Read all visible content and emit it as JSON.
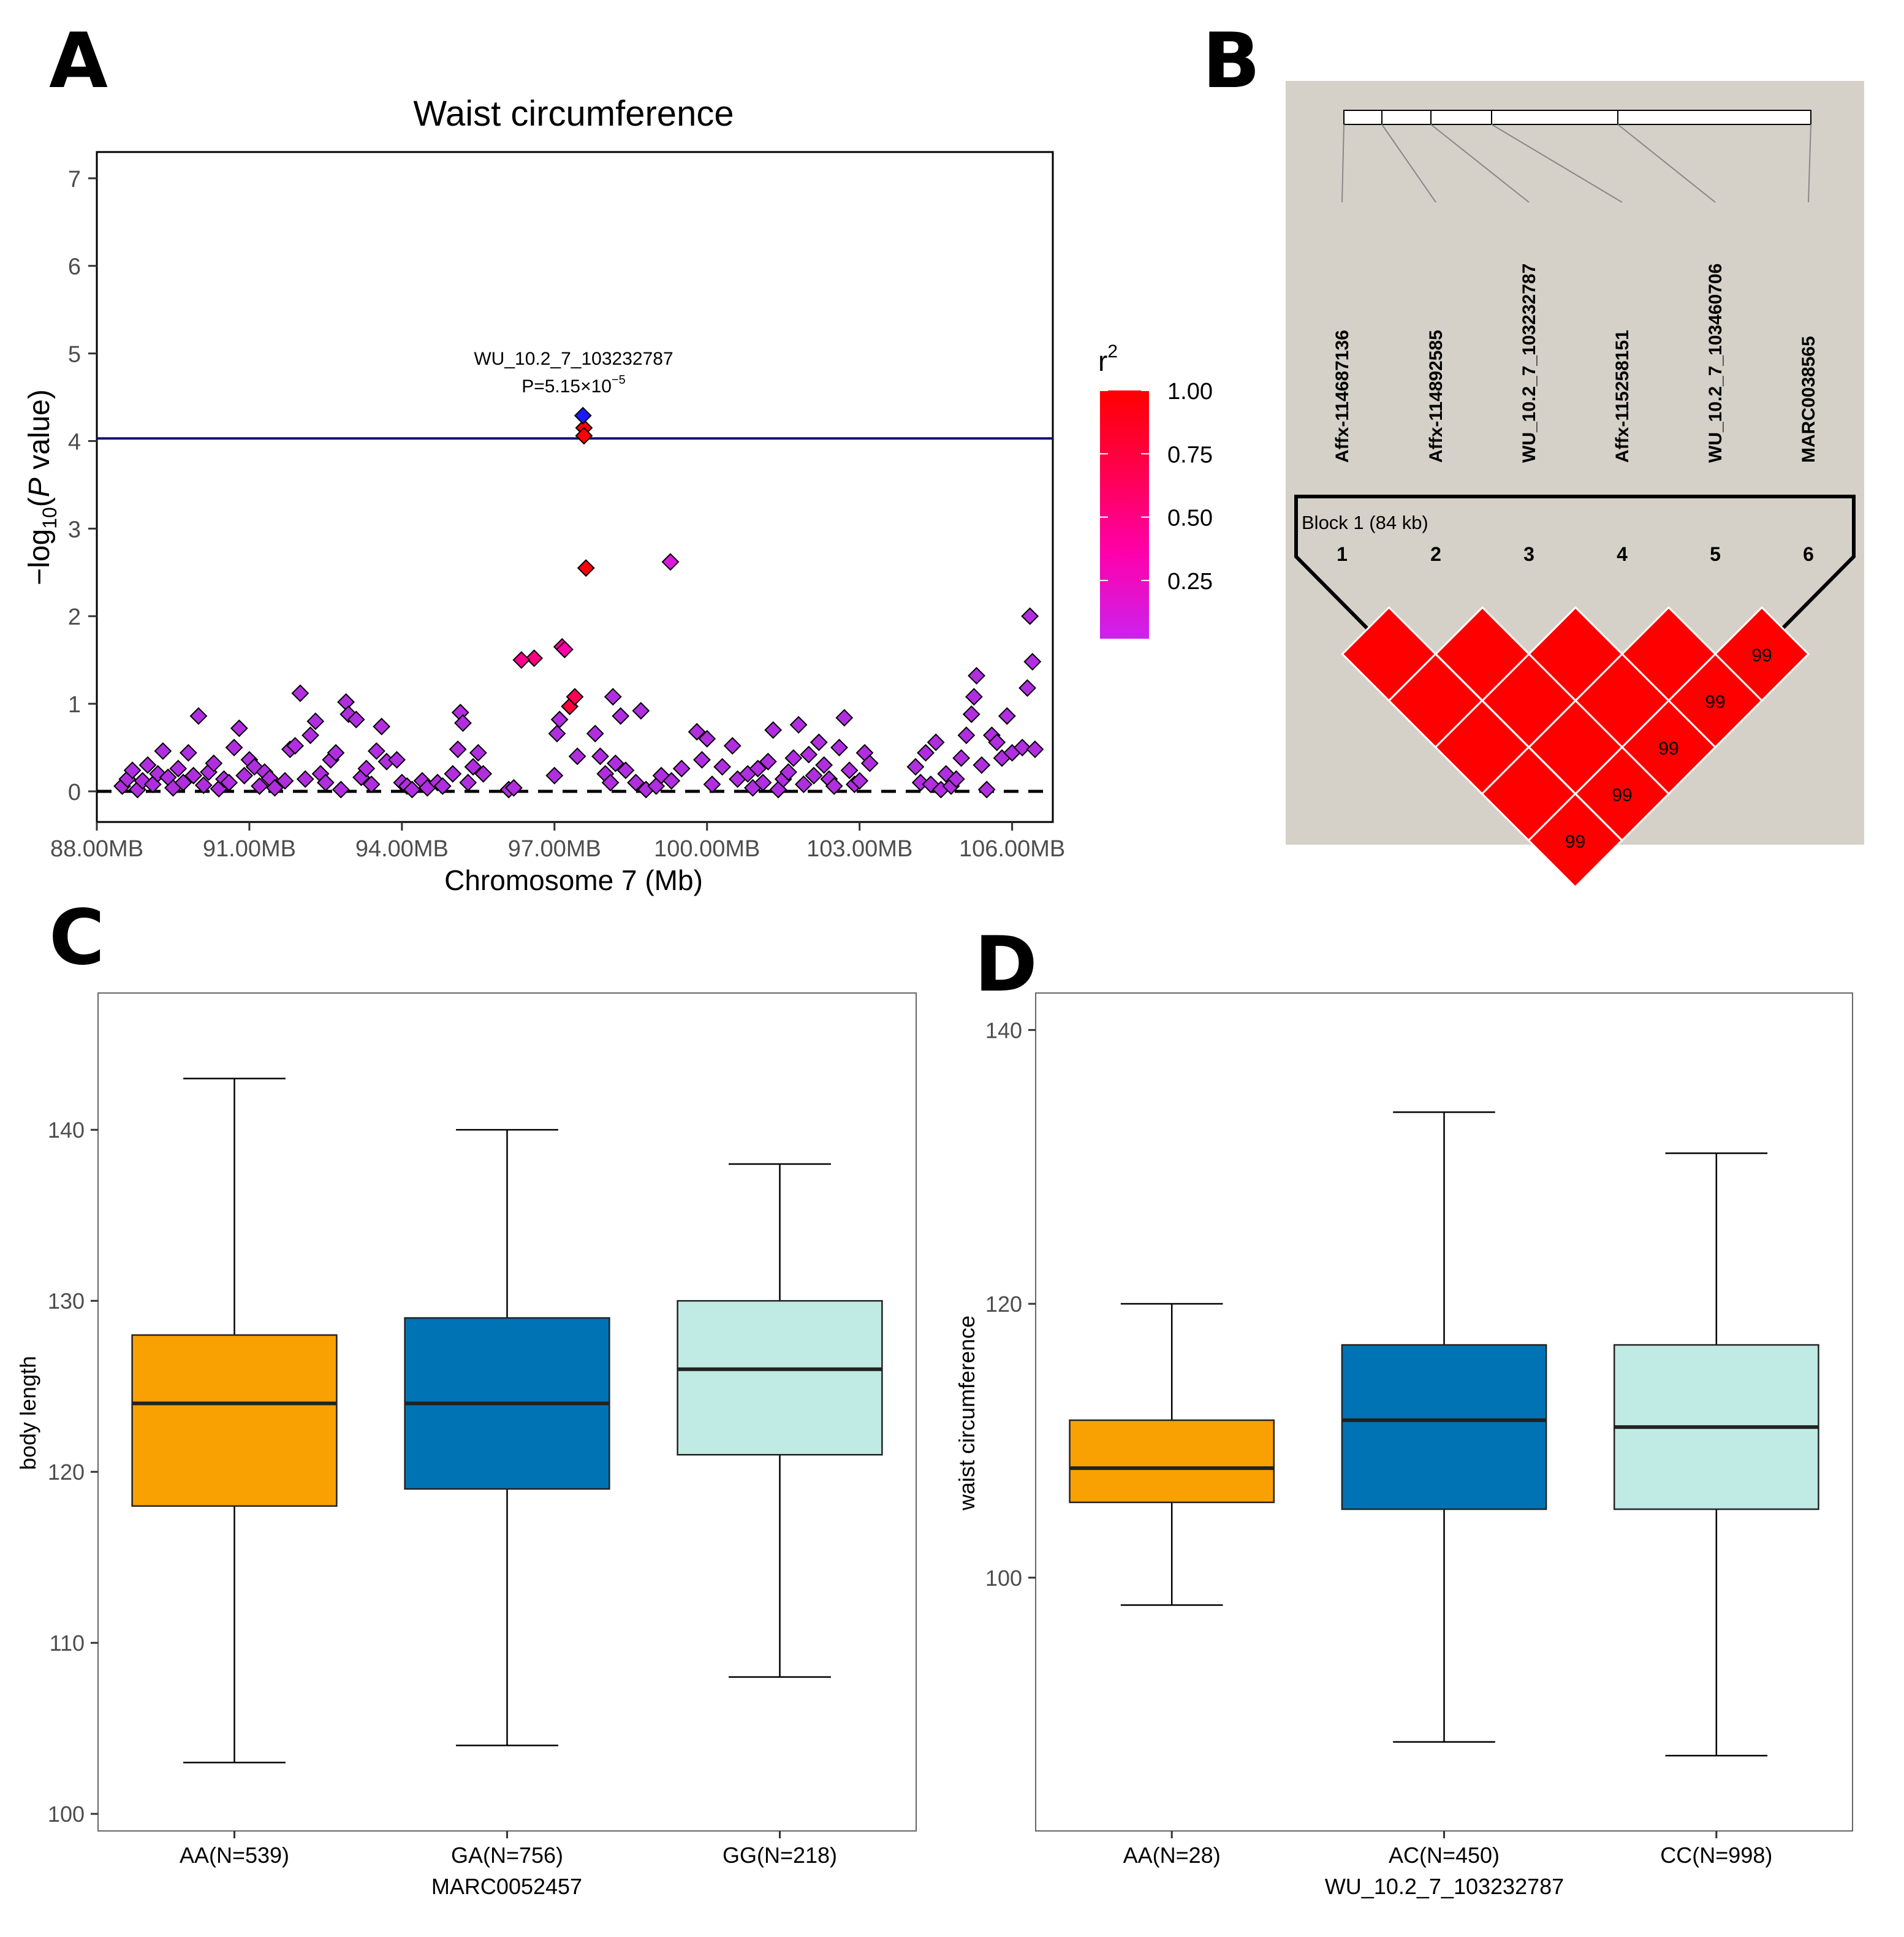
{
  "panel_letters": {
    "a": "A",
    "b": "B",
    "c": "C",
    "d": "D"
  },
  "chart_data": [
    {
      "panel": "A",
      "type": "scatter",
      "title": "Waist circumference",
      "xlabel": "Chromosome 7 (Mb)",
      "ylabel_parts": {
        "pre": "−log",
        "sub": "10",
        "open": "(",
        "italic": "P",
        "rest": " value)"
      },
      "xlim": [
        88.0,
        106.8
      ],
      "ylim": [
        -0.35,
        7.3
      ],
      "x_ticks": [
        88,
        91,
        94,
        97,
        100,
        103,
        106
      ],
      "x_tick_labels": [
        "88.00MB",
        "91.00MB",
        "94.00MB",
        "97.00MB",
        "100.00MB",
        "103.00MB",
        "106.00MB"
      ],
      "y_ticks": [
        0,
        1,
        2,
        3,
        4,
        5,
        6,
        7
      ],
      "y_tick_labels": [
        "0",
        "1",
        "2",
        "3",
        "4",
        "5",
        "6",
        "7"
      ],
      "threshold": 4.03,
      "baseline": 0,
      "top_snp": {
        "name": "WU_10.2_7_103232787",
        "p_prefix": "P=5.15×10",
        "p_exp": "−5",
        "x": 97.56,
        "y": 4.29
      },
      "legend": {
        "title": "r",
        "title_sup": "2",
        "ticks": [
          1.0,
          0.75,
          0.5,
          0.25
        ],
        "tick_labels": [
          "1.00",
          "0.75",
          "0.50",
          "0.25"
        ],
        "colors": [
          "#ff0000",
          "#ff0066",
          "#ff00bb",
          "#cc22ee"
        ]
      },
      "highlight_points": [
        {
          "x": 97.58,
          "y": 4.15,
          "r2": 0.99
        },
        {
          "x": 97.58,
          "y": 4.06,
          "r2": 0.97
        },
        {
          "x": 97.62,
          "y": 2.55,
          "r2": 0.95
        },
        {
          "x": 97.3,
          "y": 0.97,
          "r2": 0.75
        },
        {
          "x": 97.4,
          "y": 1.08,
          "r2": 0.65
        },
        {
          "x": 96.6,
          "y": 1.52,
          "r2": 0.5
        },
        {
          "x": 96.35,
          "y": 1.5,
          "r2": 0.45
        },
        {
          "x": 97.15,
          "y": 1.65,
          "r2": 0.4
        },
        {
          "x": 97.2,
          "y": 1.62,
          "r2": 0.35
        },
        {
          "x": 99.28,
          "y": 2.62,
          "r2": 0.1
        }
      ],
      "points": [
        {
          "x": 88.5,
          "y": 0.06
        },
        {
          "x": 88.6,
          "y": 0.14
        },
        {
          "x": 88.7,
          "y": 0.24
        },
        {
          "x": 88.8,
          "y": 0.02
        },
        {
          "x": 88.9,
          "y": 0.12
        },
        {
          "x": 89.0,
          "y": 0.3
        },
        {
          "x": 89.1,
          "y": 0.08
        },
        {
          "x": 89.2,
          "y": 0.2
        },
        {
          "x": 89.3,
          "y": 0.46
        },
        {
          "x": 89.4,
          "y": 0.16
        },
        {
          "x": 89.5,
          "y": 0.04
        },
        {
          "x": 89.6,
          "y": 0.26
        },
        {
          "x": 89.7,
          "y": 0.1
        },
        {
          "x": 89.8,
          "y": 0.44
        },
        {
          "x": 89.9,
          "y": 0.18
        },
        {
          "x": 90.0,
          "y": 0.86
        },
        {
          "x": 90.1,
          "y": 0.07
        },
        {
          "x": 90.2,
          "y": 0.22
        },
        {
          "x": 90.3,
          "y": 0.32
        },
        {
          "x": 90.4,
          "y": 0.03
        },
        {
          "x": 90.5,
          "y": 0.14
        },
        {
          "x": 90.6,
          "y": 0.1
        },
        {
          "x": 90.7,
          "y": 0.5
        },
        {
          "x": 90.8,
          "y": 0.72
        },
        {
          "x": 90.9,
          "y": 0.18
        },
        {
          "x": 91.0,
          "y": 0.36
        },
        {
          "x": 91.1,
          "y": 0.28
        },
        {
          "x": 91.2,
          "y": 0.06
        },
        {
          "x": 91.3,
          "y": 0.22
        },
        {
          "x": 91.4,
          "y": 0.15
        },
        {
          "x": 91.5,
          "y": 0.04
        },
        {
          "x": 91.7,
          "y": 0.12
        },
        {
          "x": 91.8,
          "y": 0.48
        },
        {
          "x": 91.9,
          "y": 0.52
        },
        {
          "x": 92.0,
          "y": 1.12
        },
        {
          "x": 92.1,
          "y": 0.14
        },
        {
          "x": 92.2,
          "y": 0.64
        },
        {
          "x": 92.3,
          "y": 0.8
        },
        {
          "x": 92.4,
          "y": 0.2
        },
        {
          "x": 92.5,
          "y": 0.1
        },
        {
          "x": 92.6,
          "y": 0.36
        },
        {
          "x": 92.7,
          "y": 0.44
        },
        {
          "x": 92.8,
          "y": 0.02
        },
        {
          "x": 92.9,
          "y": 1.02
        },
        {
          "x": 92.95,
          "y": 0.88
        },
        {
          "x": 93.1,
          "y": 0.82
        },
        {
          "x": 93.2,
          "y": 0.16
        },
        {
          "x": 93.3,
          "y": 0.26
        },
        {
          "x": 93.4,
          "y": 0.08
        },
        {
          "x": 93.5,
          "y": 0.46
        },
        {
          "x": 93.6,
          "y": 0.74
        },
        {
          "x": 93.7,
          "y": 0.34
        },
        {
          "x": 93.9,
          "y": 0.36
        },
        {
          "x": 94.0,
          "y": 0.1
        },
        {
          "x": 94.1,
          "y": 0.06
        },
        {
          "x": 94.2,
          "y": 0.02
        },
        {
          "x": 94.4,
          "y": 0.12
        },
        {
          "x": 94.5,
          "y": 0.04
        },
        {
          "x": 94.7,
          "y": 0.1
        },
        {
          "x": 94.8,
          "y": 0.06
        },
        {
          "x": 95.0,
          "y": 0.2
        },
        {
          "x": 95.1,
          "y": 0.48
        },
        {
          "x": 95.15,
          "y": 0.9
        },
        {
          "x": 95.2,
          "y": 0.78
        },
        {
          "x": 95.3,
          "y": 0.1
        },
        {
          "x": 95.4,
          "y": 0.28
        },
        {
          "x": 95.5,
          "y": 0.44
        },
        {
          "x": 95.6,
          "y": 0.2
        },
        {
          "x": 96.1,
          "y": 0.02
        },
        {
          "x": 96.2,
          "y": 0.04
        },
        {
          "x": 97.05,
          "y": 0.66
        },
        {
          "x": 97.1,
          "y": 0.82
        },
        {
          "x": 97.45,
          "y": 0.4
        },
        {
          "x": 97.0,
          "y": 0.18
        },
        {
          "x": 97.8,
          "y": 0.66
        },
        {
          "x": 97.9,
          "y": 0.4
        },
        {
          "x": 98.0,
          "y": 0.2
        },
        {
          "x": 98.1,
          "y": 0.1
        },
        {
          "x": 98.15,
          "y": 1.08
        },
        {
          "x": 98.2,
          "y": 0.32
        },
        {
          "x": 98.3,
          "y": 0.86
        },
        {
          "x": 98.4,
          "y": 0.24
        },
        {
          "x": 98.6,
          "y": 0.1
        },
        {
          "x": 98.7,
          "y": 0.92
        },
        {
          "x": 98.8,
          "y": 0.02
        },
        {
          "x": 99.0,
          "y": 0.06
        },
        {
          "x": 99.1,
          "y": 0.18
        },
        {
          "x": 99.3,
          "y": 0.12
        },
        {
          "x": 99.5,
          "y": 0.26
        },
        {
          "x": 99.8,
          "y": 0.68
        },
        {
          "x": 100.0,
          "y": 0.6
        },
        {
          "x": 99.9,
          "y": 0.36
        },
        {
          "x": 100.1,
          "y": 0.08
        },
        {
          "x": 100.3,
          "y": 0.28
        },
        {
          "x": 100.5,
          "y": 0.52
        },
        {
          "x": 100.6,
          "y": 0.14
        },
        {
          "x": 100.8,
          "y": 0.2
        },
        {
          "x": 100.9,
          "y": 0.04
        },
        {
          "x": 101.0,
          "y": 0.26
        },
        {
          "x": 101.1,
          "y": 0.1
        },
        {
          "x": 101.2,
          "y": 0.34
        },
        {
          "x": 101.3,
          "y": 0.7
        },
        {
          "x": 101.4,
          "y": 0.02
        },
        {
          "x": 101.5,
          "y": 0.14
        },
        {
          "x": 101.6,
          "y": 0.22
        },
        {
          "x": 101.7,
          "y": 0.38
        },
        {
          "x": 101.8,
          "y": 0.76
        },
        {
          "x": 101.9,
          "y": 0.08
        },
        {
          "x": 102.0,
          "y": 0.42
        },
        {
          "x": 102.1,
          "y": 0.18
        },
        {
          "x": 102.2,
          "y": 0.56
        },
        {
          "x": 102.3,
          "y": 0.3
        },
        {
          "x": 102.4,
          "y": 0.14
        },
        {
          "x": 102.5,
          "y": 0.06
        },
        {
          "x": 102.6,
          "y": 0.5
        },
        {
          "x": 102.7,
          "y": 0.84
        },
        {
          "x": 102.8,
          "y": 0.24
        },
        {
          "x": 102.9,
          "y": 0.08
        },
        {
          "x": 103.0,
          "y": 0.12
        },
        {
          "x": 103.1,
          "y": 0.44
        },
        {
          "x": 103.2,
          "y": 0.32
        },
        {
          "x": 104.1,
          "y": 0.28
        },
        {
          "x": 104.2,
          "y": 0.1
        },
        {
          "x": 104.3,
          "y": 0.44
        },
        {
          "x": 104.4,
          "y": 0.08
        },
        {
          "x": 104.5,
          "y": 0.56
        },
        {
          "x": 104.6,
          "y": 0.02
        },
        {
          "x": 104.7,
          "y": 0.2
        },
        {
          "x": 104.8,
          "y": 0.06
        },
        {
          "x": 104.9,
          "y": 0.14
        },
        {
          "x": 105.0,
          "y": 0.38
        },
        {
          "x": 105.1,
          "y": 0.64
        },
        {
          "x": 105.2,
          "y": 0.88
        },
        {
          "x": 105.25,
          "y": 1.08
        },
        {
          "x": 105.3,
          "y": 1.32
        },
        {
          "x": 105.4,
          "y": 0.3
        },
        {
          "x": 105.5,
          "y": 0.02
        },
        {
          "x": 105.6,
          "y": 0.64
        },
        {
          "x": 105.7,
          "y": 0.56
        },
        {
          "x": 105.8,
          "y": 0.38
        },
        {
          "x": 105.9,
          "y": 0.86
        },
        {
          "x": 106.0,
          "y": 0.44
        },
        {
          "x": 106.2,
          "y": 0.5
        },
        {
          "x": 106.3,
          "y": 1.18
        },
        {
          "x": 106.4,
          "y": 1.48
        },
        {
          "x": 106.35,
          "y": 2.0
        },
        {
          "x": 106.45,
          "y": 0.48
        }
      ]
    },
    {
      "panel": "B",
      "type": "heatmap",
      "snps": [
        "Affx-114687136",
        "Affx-114892585",
        "WU_10.2_7_103232787",
        "Affx-115258151",
        "WU_10.2_7_103460706",
        "MARC0038565"
      ],
      "snp_numbers": [
        "1",
        "2",
        "3",
        "4",
        "5",
        "6"
      ],
      "block_label": "Block 1 (84 kb)",
      "cells": [
        {
          "i": 1,
          "j": 2,
          "value": ""
        },
        {
          "i": 2,
          "j": 3,
          "value": ""
        },
        {
          "i": 3,
          "j": 4,
          "value": ""
        },
        {
          "i": 4,
          "j": 5,
          "value": ""
        },
        {
          "i": 5,
          "j": 6,
          "value": "99"
        },
        {
          "i": 1,
          "j": 3,
          "value": ""
        },
        {
          "i": 2,
          "j": 4,
          "value": ""
        },
        {
          "i": 3,
          "j": 5,
          "value": ""
        },
        {
          "i": 4,
          "j": 6,
          "value": "99"
        },
        {
          "i": 1,
          "j": 4,
          "value": ""
        },
        {
          "i": 2,
          "j": 5,
          "value": ""
        },
        {
          "i": 3,
          "j": 6,
          "value": "99"
        },
        {
          "i": 1,
          "j": 5,
          "value": ""
        },
        {
          "i": 2,
          "j": 6,
          "value": "99"
        },
        {
          "i": 1,
          "j": 6,
          "value": "99"
        }
      ]
    },
    {
      "panel": "C",
      "type": "box",
      "xlabel": "MARC0052457",
      "ylabel": "body length",
      "ylim": [
        99,
        148
      ],
      "y_ticks": [
        100,
        110,
        120,
        130,
        140
      ],
      "y_tick_labels": [
        "100",
        "110",
        "120",
        "130",
        "140"
      ],
      "categories": [
        "AA(N=539)",
        "GA(N=756)",
        "GG(N=218)"
      ],
      "colors": [
        "#f9a003",
        "#0073b5",
        "#c0eae4"
      ],
      "boxes": [
        {
          "min": 103,
          "q1": 118,
          "median": 124,
          "q3": 128,
          "max": 143
        },
        {
          "min": 104,
          "q1": 119,
          "median": 124,
          "q3": 129,
          "max": 140
        },
        {
          "min": 108,
          "q1": 121,
          "median": 126,
          "q3": 130,
          "max": 138
        }
      ]
    },
    {
      "panel": "D",
      "type": "box",
      "xlabel": "WU_10.2_7_103232787",
      "ylabel": "waist circumference",
      "ylim": [
        81.5,
        142.7
      ],
      "y_ticks": [
        100,
        120,
        140
      ],
      "y_tick_labels": [
        "100",
        "120",
        "140"
      ],
      "categories": [
        "AA(N=28)",
        "AC(N=450)",
        "CC(N=998)"
      ],
      "colors": [
        "#f9a003",
        "#0073b5",
        "#c0eae4"
      ],
      "boxes": [
        {
          "min": 98,
          "q1": 105.5,
          "median": 108,
          "q3": 111.5,
          "max": 120
        },
        {
          "min": 88,
          "q1": 105,
          "median": 111.5,
          "q3": 117,
          "max": 134
        },
        {
          "min": 87,
          "q1": 105,
          "median": 111,
          "q3": 117,
          "max": 131
        }
      ]
    }
  ]
}
